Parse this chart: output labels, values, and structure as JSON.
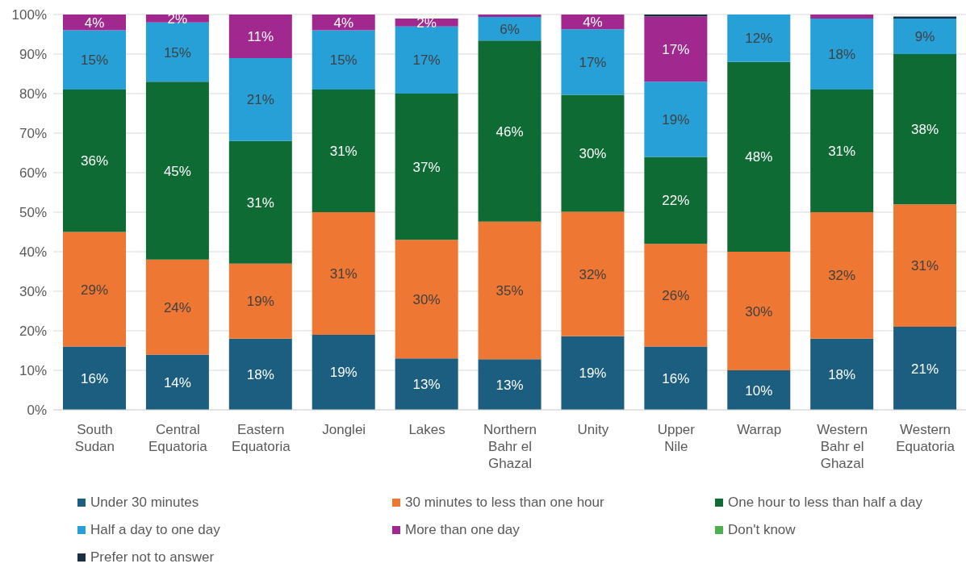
{
  "chart_data": {
    "type": "bar",
    "stacked": true,
    "categories": [
      "South Sudan",
      "Central Equatoria",
      "Eastern Equatoria",
      "Jonglei",
      "Lakes",
      "Northern Bahr el Ghazal",
      "Unity",
      "Upper Nile",
      "Warrap",
      "Western Bahr el Ghazal",
      "Western Equatoria"
    ],
    "series": [
      {
        "name": "Under 30 minutes",
        "color": "#1b5e80",
        "values": [
          16,
          14,
          18,
          19,
          13,
          12.8,
          18.6,
          16,
          10,
          18,
          21
        ],
        "value_labels": [
          "16%",
          "14%",
          "18%",
          "19%",
          "13%",
          "13%",
          "19%",
          "16%",
          "10%",
          "18%",
          "21%"
        ]
      },
      {
        "name": "30 minutes to less than one hour",
        "color": "#ee7733",
        "values": [
          29,
          24,
          19,
          31,
          30,
          34.8,
          31.5,
          26,
          30,
          32,
          31
        ],
        "value_labels": [
          "29%",
          "24%",
          "19%",
          "31%",
          "30%",
          "35%",
          "32%",
          "26%",
          "30%",
          "32%",
          "31%"
        ]
      },
      {
        "name": "One hour to less than half a day",
        "color": "#0e6b34",
        "values": [
          36,
          45,
          31,
          31,
          37,
          45.8,
          29.6,
          22,
          48,
          31,
          38
        ],
        "value_labels": [
          "36%",
          "45%",
          "31%",
          "31%",
          "37%",
          "46%",
          "30%",
          "22%",
          "48%",
          "31%",
          "38%"
        ]
      },
      {
        "name": "Half a day to one day",
        "color": "#27a0d8",
        "values": [
          15,
          15,
          21,
          15,
          17,
          6,
          16.6,
          19,
          12,
          18,
          9
        ],
        "value_labels": [
          "15%",
          "15%",
          "21%",
          "15%",
          "17%",
          "6%",
          "17%",
          "19%",
          "12%",
          "18%",
          "9%"
        ]
      },
      {
        "name": "More than one day",
        "color": "#a0288f",
        "values": [
          4,
          2,
          11,
          4,
          2,
          0.6,
          3.7,
          16.5,
          0,
          1,
          0
        ],
        "value_labels": [
          "4%",
          "2%",
          "11%",
          "4%",
          "2%",
          null,
          "4%",
          "17%",
          null,
          null,
          null
        ]
      },
      {
        "name": "Don't know",
        "color": "#4caf50",
        "values": [
          0,
          0,
          0,
          0,
          0,
          0,
          0,
          0,
          0,
          0,
          0
        ]
      },
      {
        "name": "Prefer not to answer",
        "color": "#1a2e44",
        "values": [
          0,
          0,
          0,
          0,
          0,
          0,
          0,
          0.5,
          0,
          0,
          0.5
        ]
      }
    ],
    "ylim": [
      0,
      100
    ],
    "yticks": [
      {
        "value": 0,
        "label": "0%"
      },
      {
        "value": 10,
        "label": "10%"
      },
      {
        "value": 20,
        "label": "20%"
      },
      {
        "value": 30,
        "label": "30%"
      },
      {
        "value": 40,
        "label": "40%"
      },
      {
        "value": 50,
        "label": "50%"
      },
      {
        "value": 60,
        "label": "60%"
      },
      {
        "value": 70,
        "label": "70%"
      },
      {
        "value": 80,
        "label": "80%"
      },
      {
        "value": 90,
        "label": "90%"
      },
      {
        "value": 100,
        "label": "100%"
      }
    ],
    "grid": "y",
    "legend": "bottom"
  }
}
